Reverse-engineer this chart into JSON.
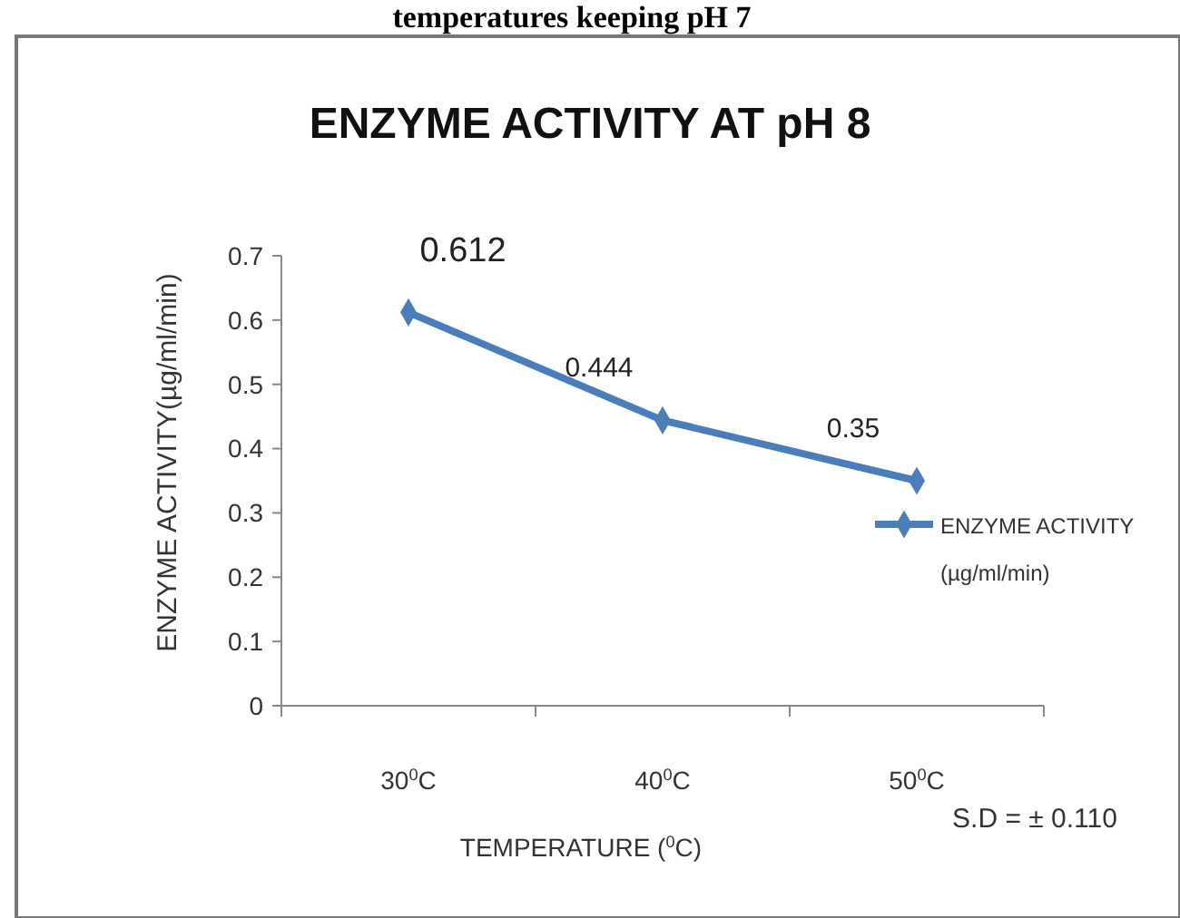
{
  "chart_data": {
    "type": "line",
    "title": "ENZYME ACTIVITY  AT pH 8",
    "xlabel": "TEMPERATURE ($^{0}$C)",
    "ylabel": "ENZYME ACTIVITY(µg/ml/min)",
    "categories": [
      "30$^{0}$C",
      "40$^{0}$C",
      "50$^{0}$C"
    ],
    "series": [
      {
        "name": "ENZYME ACTIVITY (µg/ml/min)",
        "color": "#4a7ebb",
        "values": [
          0.612,
          0.444,
          0.35
        ]
      }
    ],
    "ylim": [
      0,
      0.7
    ],
    "yticks": [
      0,
      0.1,
      0.2,
      0.3,
      0.4,
      0.5,
      0.6,
      0.7
    ],
    "data_labels": true,
    "marker": "diamond",
    "line_style": "solid",
    "grid": false,
    "legend": "right",
    "annotations": [
      "temperatures keeping pH 7",
      "S.D = ± 0.110"
    ]
  }
}
